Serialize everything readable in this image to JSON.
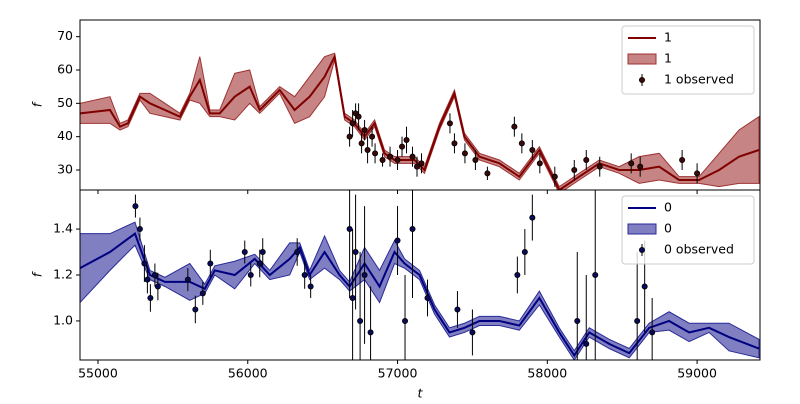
{
  "chart_data": [
    {
      "type": "line",
      "ylabel": "f",
      "x": [
        54880,
        55080,
        55147,
        55200,
        55280,
        55347,
        55447,
        55547,
        55613,
        55680,
        55747,
        55813,
        55913,
        56013,
        56080,
        56147,
        56213,
        56313,
        56413,
        56513,
        56580,
        56647,
        56713,
        56780,
        56847,
        56913,
        56980,
        57047,
        57113,
        57180,
        57280,
        57380,
        57447,
        57547,
        57680,
        57813,
        57947,
        58080,
        58213,
        58347,
        58480,
        58613,
        58747,
        58880,
        59013,
        59147,
        59280,
        59413
      ],
      "series": [
        {
          "name": "1",
          "color": "#800000",
          "values": [
            47,
            48,
            43,
            44,
            52,
            50,
            48,
            46,
            52,
            57,
            47,
            47,
            52,
            55,
            48,
            51,
            54,
            48,
            52,
            58,
            64,
            46,
            44,
            40,
            44,
            35,
            33,
            33,
            33,
            30,
            43,
            53,
            40,
            34,
            32,
            28,
            36,
            24,
            28,
            32,
            30,
            30,
            31,
            27,
            27,
            30,
            34,
            36
          ]
        }
      ],
      "band": {
        "name": "1",
        "color": "#a03232",
        "lower": [
          44,
          44,
          42,
          43,
          51,
          47,
          46,
          45,
          51,
          50,
          46,
          46,
          45,
          50,
          47,
          50,
          53,
          44,
          46,
          52,
          63,
          45,
          43,
          39,
          43,
          34,
          32,
          32,
          32,
          29,
          42,
          52,
          39,
          33,
          31,
          27,
          35,
          23,
          27,
          31,
          29,
          26,
          27,
          26,
          26,
          25,
          26,
          26
        ],
        "upper": [
          50,
          52,
          44,
          45,
          53,
          53,
          50,
          47,
          53,
          64,
          48,
          48,
          59,
          60,
          49,
          52,
          55,
          52,
          58,
          64,
          65,
          47,
          45,
          41,
          45,
          36,
          34,
          34,
          34,
          31,
          44,
          54,
          41,
          35,
          33,
          29,
          37,
          25,
          29,
          33,
          31,
          34,
          35,
          28,
          28,
          35,
          42,
          46
        ]
      },
      "observed": {
        "name": "1 observed",
        "color": "#3a0a0a",
        "x": [
          56680,
          56700,
          56720,
          56740,
          56760,
          56780,
          56800,
          56830,
          56850,
          56900,
          56950,
          57000,
          57030,
          57060,
          57100,
          57130,
          57160,
          57350,
          57380,
          57450,
          57520,
          57600,
          57780,
          57830,
          57900,
          57950,
          58050,
          58180,
          58260,
          58350,
          58560,
          58620,
          58900,
          59000
        ],
        "values": [
          40,
          44,
          47,
          46,
          38,
          42,
          36,
          40,
          35,
          33,
          34,
          33,
          37,
          39,
          34,
          31,
          32,
          44,
          38,
          35,
          33,
          29,
          43,
          38,
          36,
          32,
          28,
          30,
          33,
          31,
          32,
          31,
          33,
          29
        ],
        "errors": [
          3,
          4,
          3,
          4,
          3,
          3,
          4,
          3,
          3,
          2,
          3,
          3,
          3,
          4,
          3,
          3,
          3,
          3,
          3,
          3,
          3,
          2,
          3,
          3,
          3,
          3,
          3,
          3,
          3,
          3,
          3,
          3,
          3,
          3
        ]
      },
      "xlim": [
        54880,
        59420
      ],
      "ylim": [
        24,
        75
      ],
      "yticks": [
        30,
        40,
        50,
        60,
        70
      ],
      "legend": "upper right"
    },
    {
      "type": "line",
      "ylabel": "f",
      "xlabel": "t",
      "x": [
        54880,
        55080,
        55247,
        55347,
        55447,
        55613,
        55713,
        55780,
        55913,
        56047,
        56147,
        56280,
        56347,
        56413,
        56513,
        56613,
        56680,
        56780,
        56880,
        56980,
        57047,
        57147,
        57247,
        57347,
        57447,
        57547,
        57680,
        57813,
        57947,
        58080,
        58180,
        58280,
        58413,
        58547,
        58680,
        58813,
        58947,
        59080,
        59213,
        59413
      ],
      "series": [
        {
          "name": "0",
          "color": "#000080",
          "values": [
            1.23,
            1.3,
            1.38,
            1.2,
            1.17,
            1.17,
            1.14,
            1.22,
            1.2,
            1.27,
            1.2,
            1.27,
            1.32,
            1.2,
            1.3,
            1.2,
            1.15,
            1.25,
            1.15,
            1.3,
            1.25,
            1.2,
            1.05,
            0.95,
            0.97,
            1,
            1,
            0.98,
            1.1,
            0.95,
            0.85,
            0.95,
            0.9,
            0.86,
            0.97,
            1,
            0.95,
            0.97,
            0.93,
            0.88
          ]
        }
      ],
      "band": {
        "name": "0",
        "color": "#2a2a9a",
        "lower": [
          1.08,
          1.22,
          1.33,
          1.18,
          1.15,
          1.09,
          1.12,
          1.2,
          1.14,
          1.25,
          1.18,
          1.2,
          1.3,
          1.18,
          1.23,
          1.18,
          1.13,
          1.18,
          1.08,
          1.25,
          1.23,
          1.18,
          1.03,
          0.93,
          0.95,
          0.98,
          0.98,
          0.96,
          1.07,
          0.93,
          0.83,
          0.93,
          0.88,
          0.84,
          0.95,
          0.96,
          0.91,
          0.95,
          0.87,
          0.84
        ],
        "upper": [
          1.38,
          1.38,
          1.43,
          1.22,
          1.19,
          1.25,
          1.16,
          1.24,
          1.26,
          1.29,
          1.22,
          1.34,
          1.34,
          1.22,
          1.37,
          1.22,
          1.17,
          1.32,
          1.22,
          1.35,
          1.27,
          1.22,
          1.07,
          0.97,
          0.99,
          1.02,
          1.02,
          1,
          1.13,
          0.97,
          0.87,
          0.97,
          0.92,
          0.88,
          0.99,
          1.04,
          0.99,
          0.99,
          0.99,
          0.92
        ]
      },
      "observed": {
        "name": "0 observed",
        "color": "#0a0a5a",
        "x": [
          55250,
          55280,
          55310,
          55330,
          55350,
          55380,
          55400,
          55600,
          55650,
          55700,
          55750,
          55980,
          56020,
          56080,
          56100,
          56330,
          56380,
          56420,
          56680,
          56700,
          56720,
          56750,
          56780,
          56820,
          57000,
          57050,
          57100,
          57200,
          57400,
          57500,
          57800,
          57850,
          57900,
          58200,
          58260,
          58320,
          58600,
          58650,
          58700
        ],
        "values": [
          1.5,
          1.4,
          1.25,
          1.18,
          1.1,
          1.2,
          1.15,
          1.18,
          1.05,
          1.12,
          1.25,
          1.3,
          1.2,
          1.25,
          1.3,
          1.3,
          1.2,
          1.15,
          1.4,
          1.1,
          1.3,
          1,
          1.2,
          0.95,
          1.35,
          1,
          1.4,
          1.1,
          1.05,
          0.95,
          1.2,
          1.3,
          1.45,
          1,
          0.9,
          1.2,
          1,
          1.15,
          0.95
        ],
        "errors": [
          0.05,
          0.05,
          0.08,
          0.06,
          0.06,
          0.05,
          0.06,
          0.05,
          0.06,
          0.05,
          0.06,
          0.05,
          0.05,
          0.06,
          0.06,
          0.06,
          0.06,
          0.05,
          0.3,
          0.3,
          0.25,
          0.3,
          0.3,
          0.2,
          0.15,
          0.2,
          0.3,
          0.08,
          0.08,
          0.1,
          0.08,
          0.1,
          0.1,
          0.3,
          0.3,
          0.4,
          0.3,
          0.2,
          0.15
        ]
      },
      "xlim": [
        54880,
        59420
      ],
      "ylim": [
        0.83,
        1.57
      ],
      "xticks": [
        55000,
        56000,
        57000,
        58000,
        59000
      ],
      "yticks": [
        {
          "value": 1,
          "label": "1.0"
        },
        1.2,
        1.4
      ],
      "legend": "upper right"
    }
  ]
}
